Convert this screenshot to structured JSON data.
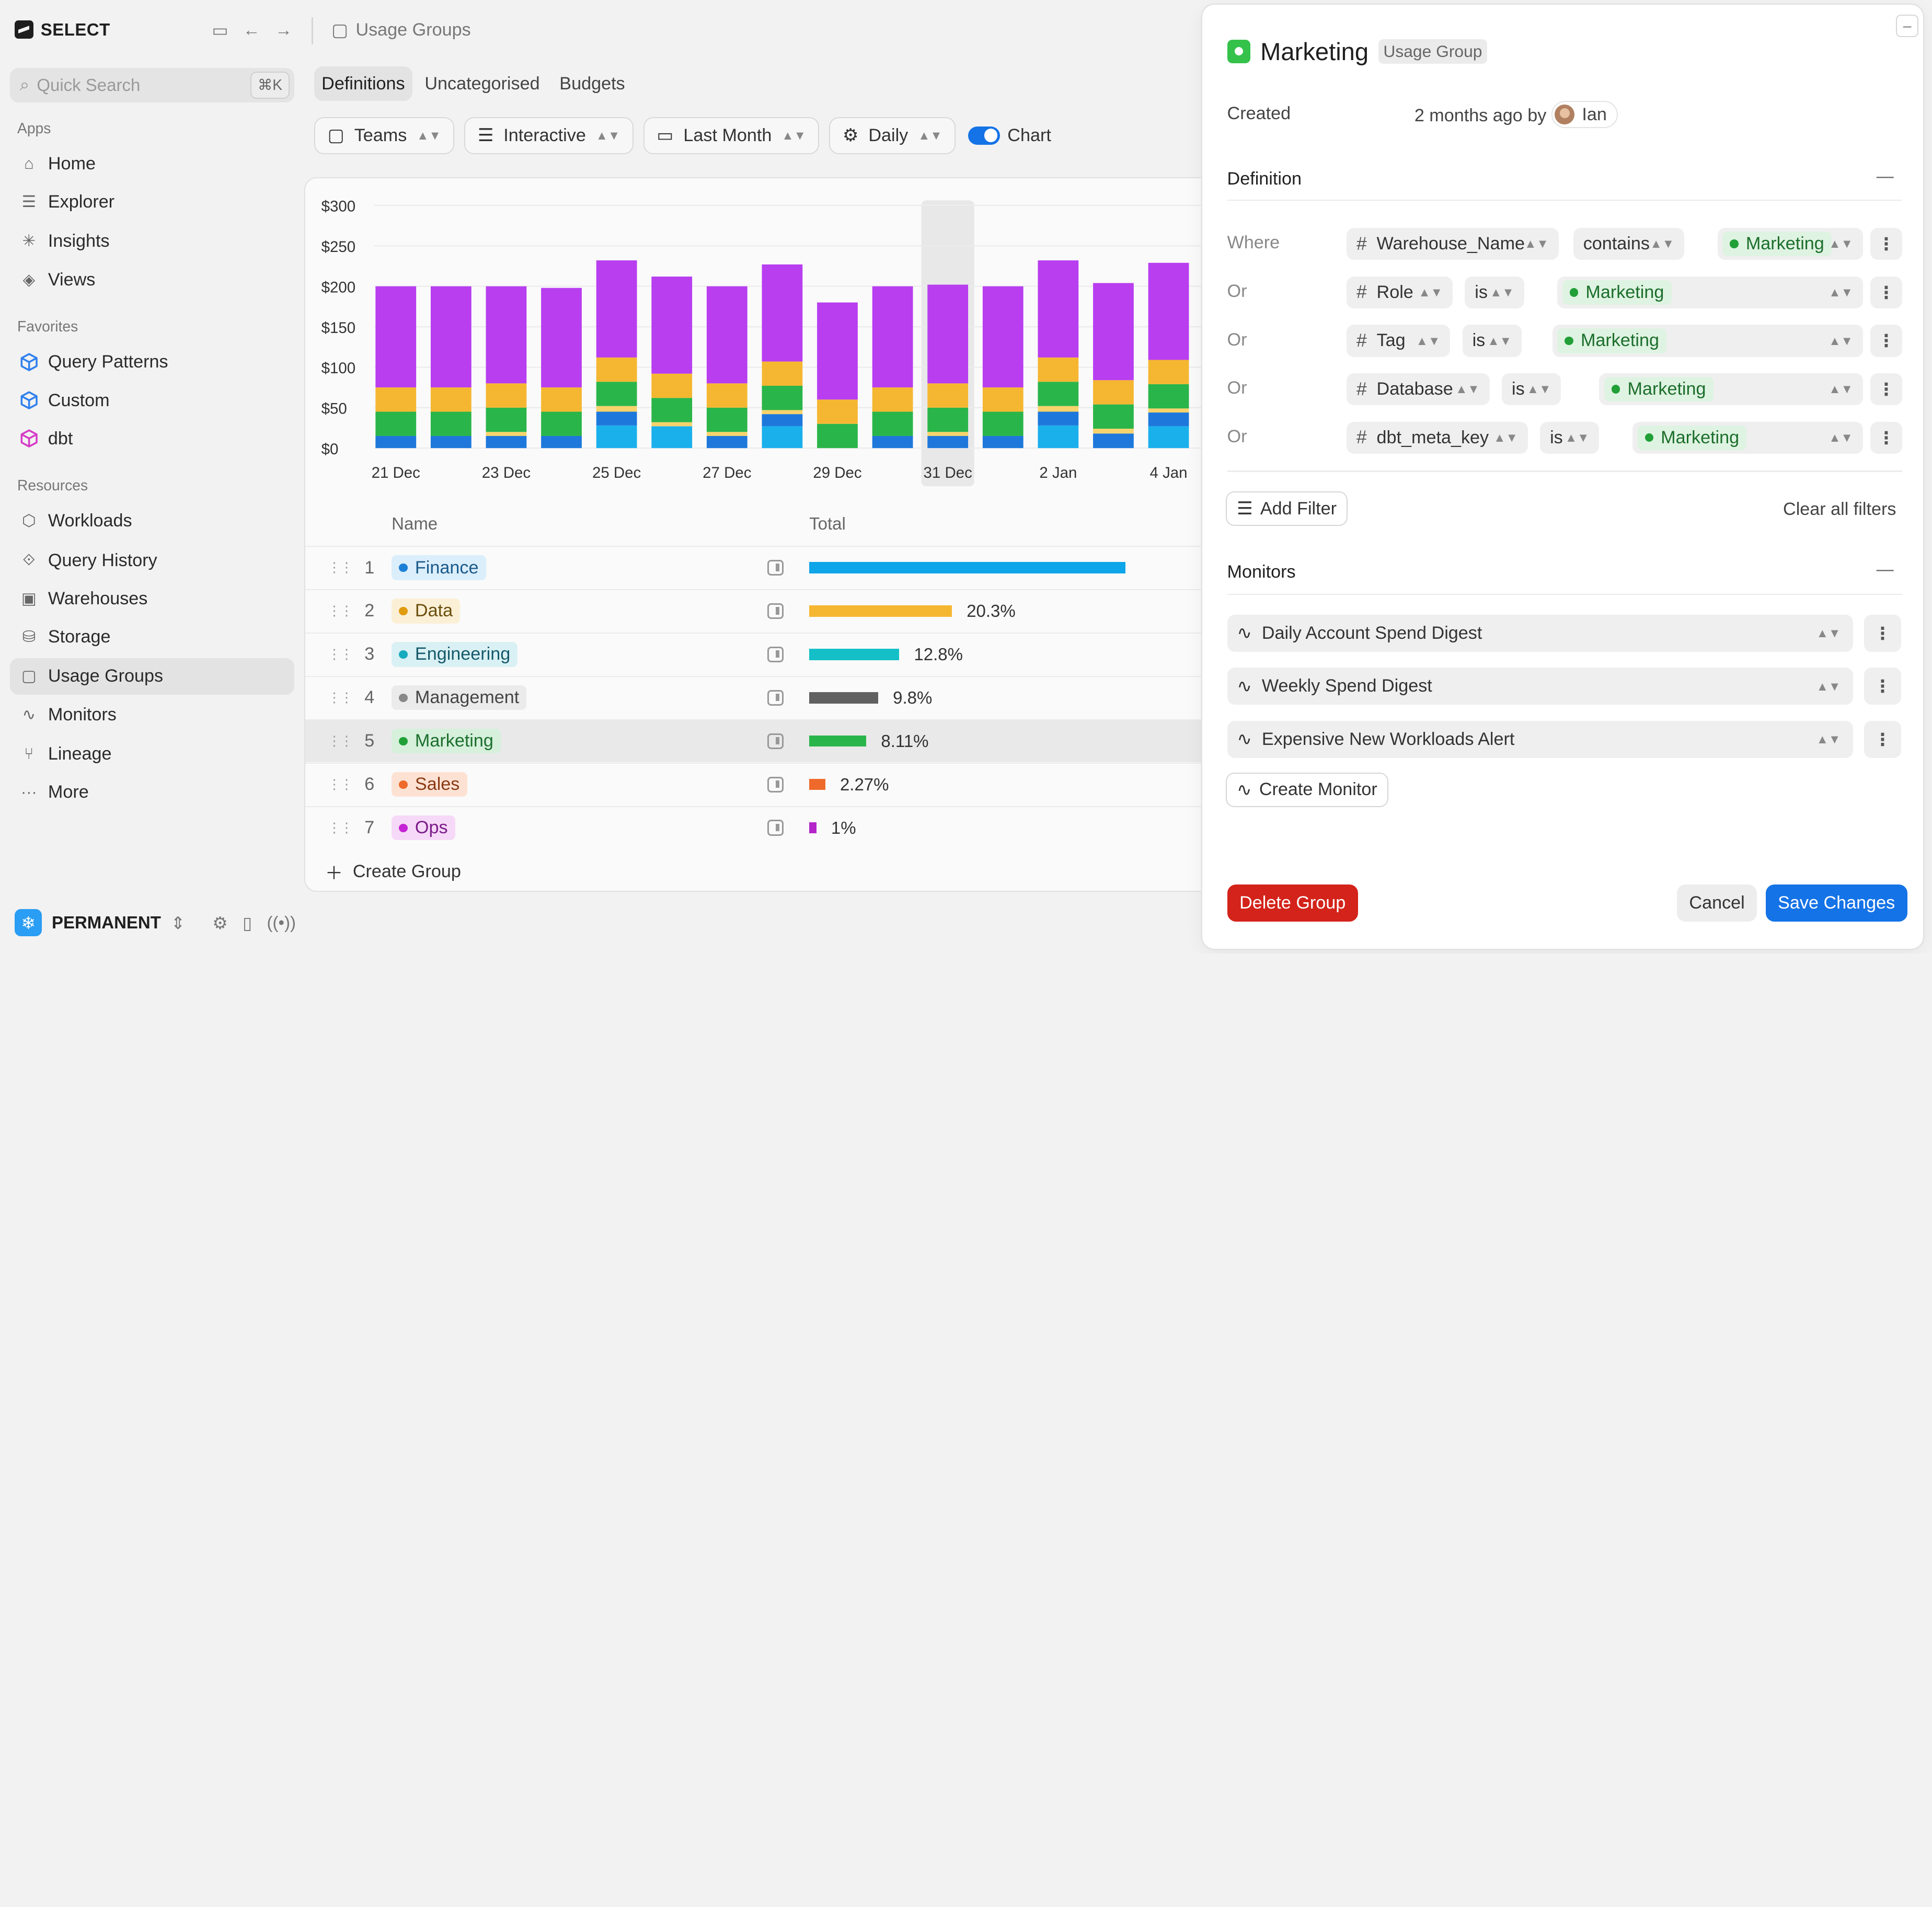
{
  "app": {
    "brand": "SELECT",
    "workspace": "PERMANENT"
  },
  "search": {
    "placeholder": "Quick Search",
    "shortcut": "⌘K"
  },
  "sidebar": {
    "apps_label": "Apps",
    "apps": [
      {
        "label": "Home",
        "icon": "home-icon"
      },
      {
        "label": "Explorer",
        "icon": "explorer-icon"
      },
      {
        "label": "Insights",
        "icon": "insights-icon"
      },
      {
        "label": "Views",
        "icon": "views-icon"
      }
    ],
    "favorites_label": "Favorites",
    "favorites": [
      {
        "label": "Query Patterns",
        "color": "#2f80ed"
      },
      {
        "label": "Custom",
        "color": "#2f80ed"
      },
      {
        "label": "dbt",
        "color": "#d63bc7"
      }
    ],
    "resources_label": "Resources",
    "resources": [
      {
        "label": "Workloads"
      },
      {
        "label": "Query History"
      },
      {
        "label": "Warehouses"
      },
      {
        "label": "Storage"
      },
      {
        "label": "Usage Groups"
      },
      {
        "label": "Monitors"
      },
      {
        "label": "Lineage"
      },
      {
        "label": "More"
      }
    ]
  },
  "main": {
    "breadcrumb": "Usage Groups",
    "tabs": [
      "Definitions",
      "Uncategorised",
      "Budgets"
    ],
    "filters": {
      "group_by": "Teams",
      "mode": "Interactive",
      "range": "Last Month",
      "granularity": "Daily",
      "chart_label": "Chart"
    },
    "table": {
      "col_name": "Name",
      "col_total": "Total",
      "rows": [
        {
          "idx": "1",
          "name": "Finance",
          "pct": "",
          "share": 0.45,
          "color": "#0ea5e9",
          "bg": "#dbeefb",
          "fg": "#1a5a8a",
          "dot": "#1b7fd6"
        },
        {
          "idx": "2",
          "name": "Data",
          "pct": "20.3%",
          "share": 0.203,
          "color": "#f5b731",
          "bg": "#fbf0d6",
          "fg": "#6b4e0c",
          "dot": "#e09b0e"
        },
        {
          "idx": "3",
          "name": "Engineering",
          "pct": "12.8%",
          "share": 0.128,
          "color": "#14bfc7",
          "bg": "#d9f1f4",
          "fg": "#14596b",
          "dot": "#18aabf"
        },
        {
          "idx": "4",
          "name": "Management",
          "pct": "9.8%",
          "share": 0.098,
          "color": "#616161",
          "bg": "#ebebeb",
          "fg": "#444444",
          "dot": "#888888"
        },
        {
          "idx": "5",
          "name": "Marketing",
          "pct": "8.11%",
          "share": 0.0811,
          "color": "#2ab54a",
          "bg": "#d6f0dc",
          "fg": "#1b6e2b",
          "dot": "#21a038"
        },
        {
          "idx": "6",
          "name": "Sales",
          "pct": "2.27%",
          "share": 0.0227,
          "color": "#ef6a2a",
          "bg": "#fde2d4",
          "fg": "#8a3a12",
          "dot": "#ef6a2a"
        },
        {
          "idx": "7",
          "name": "Ops",
          "pct": "1%",
          "share": 0.01,
          "color": "#b424c9",
          "bg": "#f6d9f8",
          "fg": "#7b1a8a",
          "dot": "#c524d4"
        }
      ]
    },
    "create_group": "Create Group"
  },
  "chart_data": {
    "type": "bar",
    "stacked": true,
    "y_ticks": [
      "$300",
      "$250",
      "$200",
      "$150",
      "$100",
      "$50",
      "$0"
    ],
    "ylim": [
      0,
      300
    ],
    "x_tick_labels": [
      "21 Dec",
      "23 Dec",
      "25 Dec",
      "27 Dec",
      "29 Dec",
      "31 Dec",
      "2 Jan",
      "4 Jan"
    ],
    "highlighted": "31 Dec",
    "categories": [
      "21 Dec",
      "22 Dec",
      "23 Dec",
      "24 Dec",
      "25 Dec",
      "26 Dec",
      "27 Dec",
      "28 Dec",
      "29 Dec",
      "30 Dec",
      "31 Dec",
      "1 Jan",
      "2 Jan",
      "3 Jan",
      "4 Jan"
    ],
    "series": [
      {
        "name": "Finance (light)",
        "color": "#1ab0ec",
        "values": [
          0,
          0,
          0,
          0,
          28,
          27,
          0,
          27,
          0,
          0,
          0,
          0,
          28,
          0,
          27
        ]
      },
      {
        "name": "Finance",
        "color": "#1e78db",
        "values": [
          15,
          15,
          15,
          15,
          17,
          0,
          15,
          15,
          0,
          15,
          15,
          15,
          17,
          18,
          17
        ]
      },
      {
        "name": "Data (light)",
        "color": "#f7d36c",
        "values": [
          0,
          0,
          5,
          0,
          7,
          5,
          5,
          5,
          0,
          0,
          5,
          0,
          7,
          6,
          5
        ]
      },
      {
        "name": "Marketing",
        "color": "#2ab54a",
        "values": [
          30,
          30,
          30,
          30,
          30,
          30,
          30,
          30,
          30,
          30,
          30,
          30,
          30,
          30,
          30
        ]
      },
      {
        "name": "Data",
        "color": "#f5b731",
        "values": [
          30,
          30,
          30,
          30,
          30,
          30,
          30,
          30,
          30,
          30,
          30,
          30,
          30,
          30,
          30
        ]
      },
      {
        "name": "Ops",
        "color": "#b83ef0",
        "values": [
          125,
          125,
          120,
          123,
          120,
          120,
          120,
          120,
          120,
          125,
          122,
          125,
          120,
          120,
          120
        ]
      }
    ]
  },
  "panel": {
    "title": "Marketing",
    "badge": "Usage Group",
    "created_label": "Created",
    "created_value": "2 months ago by",
    "created_user": "Ian",
    "definition_title": "Definition",
    "filters": [
      {
        "connector": "Where",
        "field": "Warehouse_Name",
        "op": "contains",
        "value": "Marketing"
      },
      {
        "connector": "Or",
        "field": "Role",
        "op": "is",
        "value": "Marketing"
      },
      {
        "connector": "Or",
        "field": "Tag",
        "op": "is",
        "value": "Marketing"
      },
      {
        "connector": "Or",
        "field": "Database",
        "op": "is",
        "value": "Marketing"
      },
      {
        "connector": "Or",
        "field": "dbt_meta_key",
        "op": "is",
        "value": "Marketing"
      }
    ],
    "add_filter": "Add Filter",
    "clear_filters": "Clear all filters",
    "monitors_title": "Monitors",
    "monitors": [
      "Daily Account Spend Digest",
      "Weekly Spend Digest",
      "Expensive New Workloads Alert"
    ],
    "create_monitor": "Create Monitor",
    "delete": "Delete Group",
    "cancel": "Cancel",
    "save": "Save Changes"
  }
}
